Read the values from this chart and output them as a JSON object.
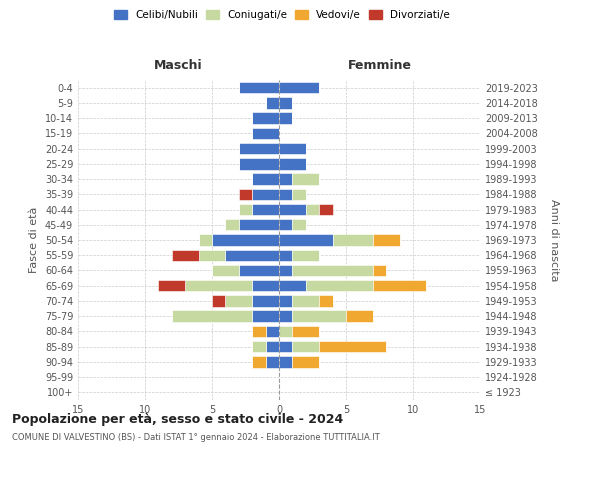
{
  "age_groups": [
    "100+",
    "95-99",
    "90-94",
    "85-89",
    "80-84",
    "75-79",
    "70-74",
    "65-69",
    "60-64",
    "55-59",
    "50-54",
    "45-49",
    "40-44",
    "35-39",
    "30-34",
    "25-29",
    "20-24",
    "15-19",
    "10-14",
    "5-9",
    "0-4"
  ],
  "birth_years": [
    "≤ 1923",
    "1924-1928",
    "1929-1933",
    "1934-1938",
    "1939-1943",
    "1944-1948",
    "1949-1953",
    "1954-1958",
    "1959-1963",
    "1964-1968",
    "1969-1973",
    "1974-1978",
    "1979-1983",
    "1984-1988",
    "1989-1993",
    "1994-1998",
    "1999-2003",
    "2004-2008",
    "2009-2013",
    "2014-2018",
    "2019-2023"
  ],
  "colors": {
    "celibi": "#4472c4",
    "coniugati": "#c5d9a0",
    "vedovi": "#f0a830",
    "divorziati": "#c0392b"
  },
  "maschi": {
    "celibi": [
      0,
      0,
      1,
      1,
      1,
      2,
      2,
      2,
      3,
      4,
      5,
      3,
      2,
      2,
      2,
      3,
      3,
      2,
      2,
      1,
      3
    ],
    "coniugati": [
      0,
      0,
      0,
      1,
      0,
      6,
      2,
      5,
      2,
      2,
      1,
      1,
      1,
      0,
      0,
      0,
      0,
      0,
      0,
      0,
      0
    ],
    "vedovi": [
      0,
      0,
      1,
      0,
      1,
      0,
      0,
      0,
      0,
      0,
      0,
      0,
      0,
      0,
      0,
      0,
      0,
      0,
      0,
      0,
      0
    ],
    "divorziati": [
      0,
      0,
      0,
      0,
      0,
      0,
      1,
      2,
      0,
      2,
      0,
      0,
      0,
      1,
      0,
      0,
      0,
      0,
      0,
      0,
      0
    ]
  },
  "femmine": {
    "celibi": [
      0,
      0,
      1,
      1,
      0,
      1,
      1,
      2,
      1,
      1,
      4,
      1,
      2,
      1,
      1,
      2,
      2,
      0,
      1,
      1,
      3
    ],
    "coniugati": [
      0,
      0,
      0,
      2,
      1,
      4,
      2,
      5,
      6,
      2,
      3,
      1,
      1,
      1,
      2,
      0,
      0,
      0,
      0,
      0,
      0
    ],
    "vedovi": [
      0,
      0,
      2,
      5,
      2,
      2,
      1,
      4,
      1,
      0,
      2,
      0,
      0,
      0,
      0,
      0,
      0,
      0,
      0,
      0,
      0
    ],
    "divorziati": [
      0,
      0,
      0,
      0,
      0,
      0,
      0,
      0,
      0,
      0,
      0,
      0,
      1,
      0,
      0,
      0,
      0,
      0,
      0,
      0,
      0
    ]
  },
  "title": "Popolazione per età, sesso e stato civile - 2024",
  "subtitle": "COMUNE DI VALVESTINO (BS) - Dati ISTAT 1° gennaio 2024 - Elaborazione TUTTITALIA.IT",
  "ylabel_left": "Fasce di età",
  "ylabel_right": "Anni di nascita",
  "xlabel_left": "Maschi",
  "xlabel_right": "Femmine",
  "legend_labels": [
    "Celibi/Nubili",
    "Coniugati/e",
    "Vedovi/e",
    "Divorziati/e"
  ],
  "xlim": 15,
  "background_color": "#ffffff",
  "grid_color": "#cccccc"
}
